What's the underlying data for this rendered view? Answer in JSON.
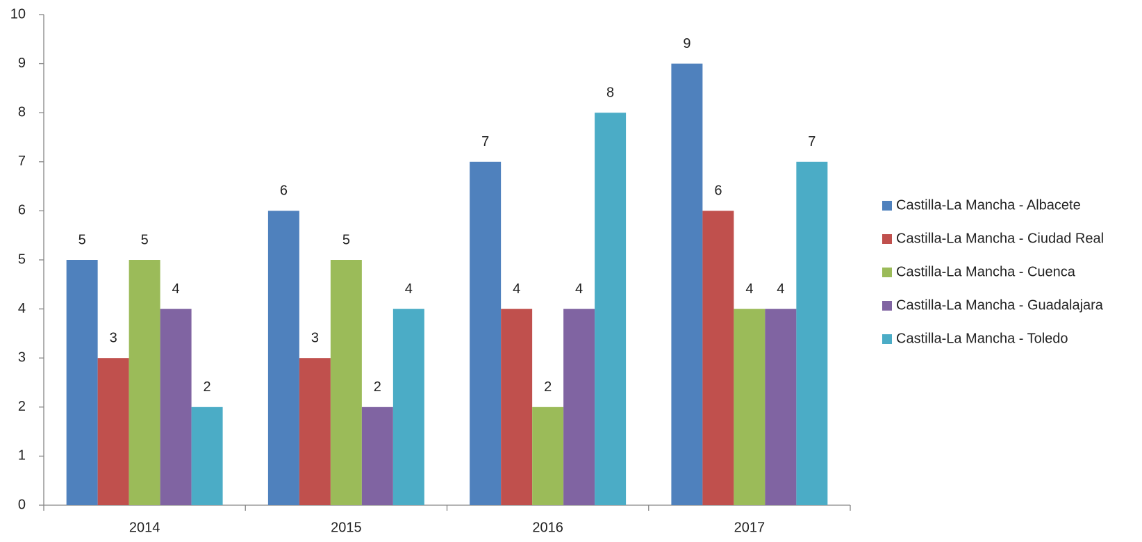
{
  "chart_data": {
    "type": "bar",
    "categories": [
      "2014",
      "2015",
      "2016",
      "2017"
    ],
    "series": [
      {
        "name": "Castilla-La Mancha - Albacete",
        "color": "#4f81bd",
        "values": [
          5,
          6,
          7,
          9
        ]
      },
      {
        "name": "Castilla-La Mancha - Ciudad Real",
        "color": "#c0504d",
        "values": [
          3,
          3,
          4,
          6
        ]
      },
      {
        "name": "Castilla-La Mancha - Cuenca",
        "color": "#9bbb59",
        "values": [
          5,
          5,
          2,
          4
        ]
      },
      {
        "name": "Castilla-La Mancha - Guadalajara",
        "color": "#8064a2",
        "values": [
          4,
          2,
          4,
          4
        ]
      },
      {
        "name": "Castilla-La Mancha - Toledo",
        "color": "#4bacc6",
        "values": [
          2,
          4,
          8,
          7
        ]
      }
    ],
    "ylim": [
      0,
      10
    ],
    "yticks": [
      0,
      1,
      2,
      3,
      4,
      5,
      6,
      7,
      8,
      9,
      10
    ],
    "grid": false,
    "legend": "right",
    "data_labels": true
  }
}
